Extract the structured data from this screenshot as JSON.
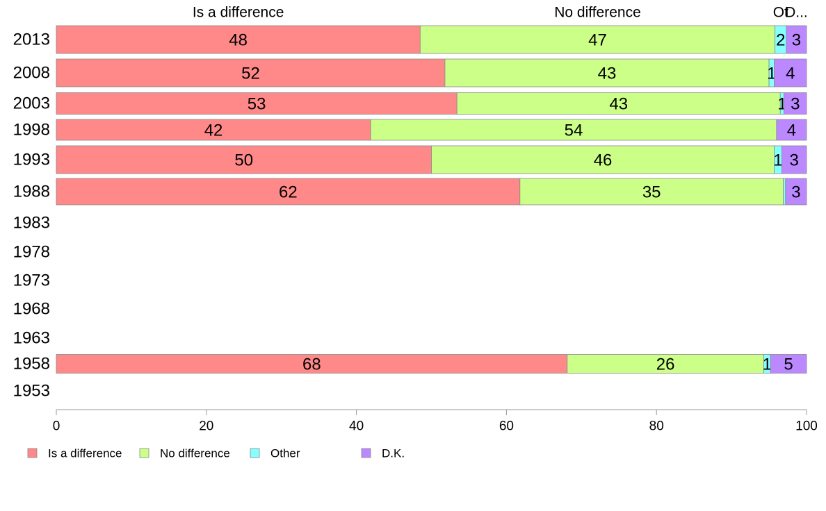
{
  "colors": {
    "is_a_difference": "#ff8888",
    "no_difference": "#ccff88",
    "other": "#88ffff",
    "dk": "#bb88ff"
  },
  "chart_data": {
    "type": "bar",
    "orientation": "horizontal",
    "stacked": true,
    "categories": [
      "2013",
      "2008",
      "2003",
      "1998",
      "1993",
      "1988",
      "1983",
      "1978",
      "1973",
      "1968",
      "1963",
      "1958",
      "1953"
    ],
    "series": [
      {
        "name": "Is a difference",
        "values": [
          48.5,
          51.8,
          53.4,
          41.9,
          50.0,
          61.8,
          null,
          null,
          null,
          null,
          null,
          68.1,
          null
        ]
      },
      {
        "name": "No difference",
        "values": [
          47.3,
          43.2,
          43.1,
          54.1,
          45.7,
          35.1,
          null,
          null,
          null,
          null,
          null,
          26.2,
          null
        ]
      },
      {
        "name": "Other",
        "values": [
          1.5,
          0.7,
          0.5,
          0.0,
          1.0,
          0.3,
          null,
          null,
          null,
          null,
          null,
          0.9,
          null
        ]
      },
      {
        "name": "D.K.",
        "values": [
          2.7,
          4.3,
          3.0,
          4.0,
          3.3,
          2.8,
          null,
          null,
          null,
          null,
          null,
          4.8,
          null
        ]
      }
    ],
    "bar_labels": [
      [
        "48",
        "47",
        "2",
        "3"
      ],
      [
        "52",
        "43",
        "1",
        "4"
      ],
      [
        "53",
        "43",
        "1",
        "3"
      ],
      [
        "42",
        "54",
        "",
        "4"
      ],
      [
        "50",
        "46",
        "1",
        "3"
      ],
      [
        "62",
        "35",
        "",
        "3"
      ],
      null,
      null,
      null,
      null,
      null,
      [
        "68",
        "26",
        "1",
        "5"
      ],
      null
    ],
    "top_labels": [
      "Is a difference",
      "No difference",
      "Ot",
      "D..."
    ],
    "xlim": [
      0,
      100
    ],
    "xticks": [
      "0",
      "20",
      "40",
      "60",
      "80",
      "100"
    ],
    "legend": [
      "Is a difference",
      "No difference",
      "Other",
      "D.K."
    ],
    "legend_position": "bottom-left",
    "grid": false
  }
}
